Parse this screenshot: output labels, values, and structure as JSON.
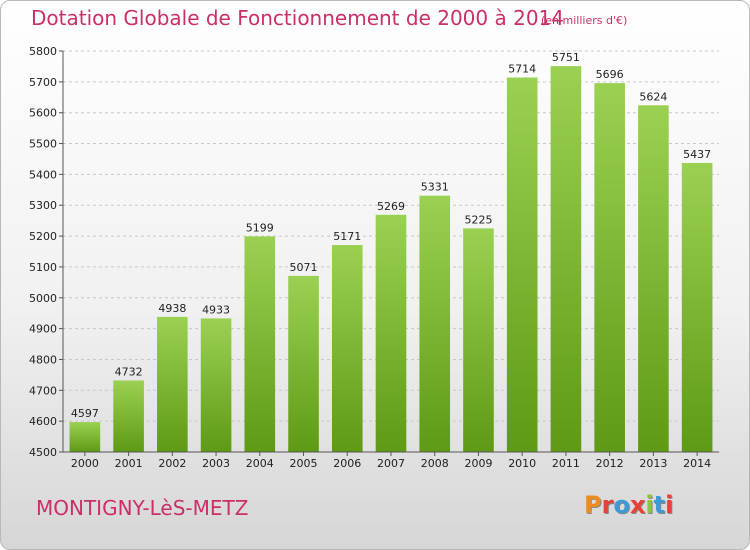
{
  "header": {
    "title": "Dotation Globale de Fonctionnement de 2000 à 2014",
    "unit": "(en milliers d'€)"
  },
  "footer": {
    "commune": "MONTIGNY-LèS-METZ",
    "logo_text": "Proxiti",
    "logo_colors": [
      "#f08c1e",
      "#e8413a",
      "#3c9ad6",
      "#e8413a",
      "#8cc63e",
      "#3c9ad6",
      "#e8413a"
    ]
  },
  "chart_data": {
    "type": "bar",
    "title": "Dotation Globale de Fonctionnement de 2000 à 2014",
    "subtitle": "(en milliers d'€)",
    "xlabel": "",
    "ylabel": "",
    "categories": [
      "2000",
      "2001",
      "2002",
      "2003",
      "2004",
      "2005",
      "2006",
      "2007",
      "2008",
      "2009",
      "2010",
      "2011",
      "2012",
      "2013",
      "2014"
    ],
    "values": [
      4597,
      4732,
      4938,
      4933,
      5199,
      5071,
      5171,
      5269,
      5331,
      5225,
      5714,
      5751,
      5696,
      5624,
      5437
    ],
    "ylim": [
      4500,
      5800
    ],
    "yticks": [
      4500,
      4600,
      4700,
      4800,
      4900,
      5000,
      5100,
      5200,
      5300,
      5400,
      5500,
      5600,
      5700,
      5800
    ],
    "grid": true,
    "bar_color_top": "#9bd153",
    "bar_color_bottom": "#5e9a14"
  }
}
